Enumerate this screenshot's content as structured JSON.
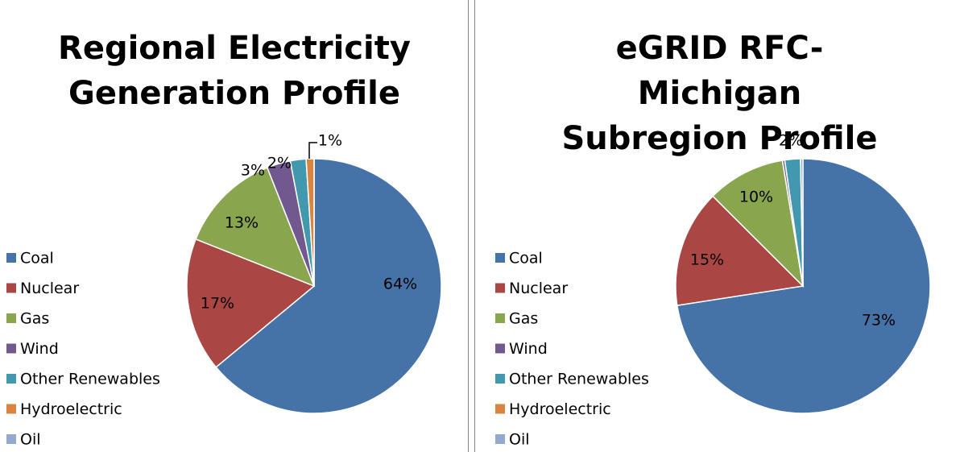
{
  "chart_data": [
    {
      "type": "pie",
      "title": "Regional Electricity Generation Profile",
      "categories": [
        "Coal",
        "Nuclear",
        "Gas",
        "Wind",
        "Other Renewables",
        "Hydroelectric",
        "Oil"
      ],
      "values": [
        64,
        17,
        13,
        3,
        2,
        1,
        0
      ],
      "value_labels": [
        "64%",
        "17%",
        "13%",
        "3%",
        "2%",
        "1%",
        null
      ],
      "colors": [
        "#4572a7",
        "#aa4643",
        "#89a54e",
        "#71588f",
        "#4198af",
        "#db843d",
        "#93a9cf"
      ],
      "legend": "left"
    },
    {
      "type": "pie",
      "title": "eGRID RFC-Michigan Subregion Profile",
      "categories": [
        "Coal",
        "Nuclear",
        "Gas",
        "Wind",
        "Other Renewables",
        "Hydroelectric",
        "Oil"
      ],
      "values": [
        73,
        15,
        10,
        0.3,
        2,
        0,
        0.3
      ],
      "value_labels": [
        "73%",
        "15%",
        "10%",
        null,
        "2%",
        null,
        null
      ],
      "colors": [
        "#4572a7",
        "#aa4643",
        "#89a54e",
        "#71588f",
        "#4198af",
        "#db843d",
        "#93a9cf"
      ],
      "legend": "left"
    }
  ]
}
